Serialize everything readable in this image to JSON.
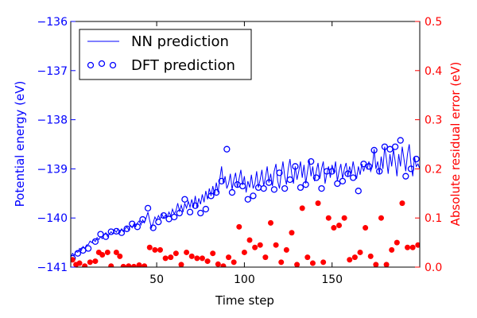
{
  "chart_data": {
    "type": "line",
    "x": [
      1,
      2,
      3,
      4,
      5,
      6,
      7,
      8,
      9,
      10,
      11,
      12,
      13,
      14,
      15,
      16,
      17,
      18,
      19,
      20,
      21,
      22,
      23,
      24,
      25,
      26,
      27,
      28,
      29,
      30,
      31,
      32,
      33,
      34,
      35,
      36,
      37,
      38,
      39,
      40,
      41,
      42,
      43,
      44,
      45,
      46,
      47,
      48,
      49,
      50,
      51,
      52,
      53,
      54,
      55,
      56,
      57,
      58,
      59,
      60,
      61,
      62,
      63,
      64,
      65,
      66,
      67,
      68,
      69,
      70,
      71,
      72,
      73,
      74,
      75,
      76,
      77,
      78,
      79,
      80,
      81,
      82,
      83,
      84,
      85,
      86,
      87,
      88,
      89,
      90,
      91,
      92,
      93,
      94,
      95,
      96,
      97,
      98,
      99,
      100,
      101,
      102,
      103,
      104,
      105,
      106,
      107,
      108,
      109,
      110,
      111,
      112,
      113,
      114,
      115,
      116,
      117,
      118,
      119,
      120,
      121,
      122,
      123,
      124,
      125,
      126,
      127,
      128,
      129,
      130,
      131,
      132,
      133,
      134,
      135,
      136,
      137,
      138,
      139,
      140,
      141,
      142,
      143,
      144,
      145,
      146,
      147,
      148,
      149,
      150,
      151,
      152,
      153,
      154,
      155,
      156,
      157,
      158,
      159,
      160,
      161,
      162,
      163,
      164,
      165,
      166,
      167,
      168,
      169,
      170,
      171,
      172,
      173,
      174,
      175,
      176,
      177,
      178,
      179,
      180,
      181,
      182,
      183,
      184,
      185,
      186,
      187,
      188,
      189,
      190,
      191,
      192,
      193,
      194,
      195,
      196,
      197,
      198,
      199,
      200
    ],
    "series": [
      {
        "name": "NN prediction",
        "axis": "left",
        "style": "line",
        "color": "#0000ff",
        "values": [
          -140.8,
          -140.72,
          -140.76,
          -140.68,
          -140.7,
          -140.62,
          -140.66,
          -140.58,
          -140.62,
          -140.55,
          -140.54,
          -140.47,
          -140.5,
          -140.44,
          -140.48,
          -140.4,
          -140.44,
          -140.38,
          -140.42,
          -140.34,
          -140.3,
          -140.38,
          -140.33,
          -140.28,
          -140.32,
          -140.25,
          -140.29,
          -140.22,
          -140.3,
          -140.22,
          -140.28,
          -140.22,
          -140.18,
          -140.24,
          -140.15,
          -140.2,
          -140.12,
          -140.18,
          -140.1,
          -140.06,
          -140.14,
          -140.04,
          -140.1,
          -140.0,
          -139.88,
          -140.05,
          -140.2,
          -140.1,
          -139.98,
          -140.05,
          -139.95,
          -140.02,
          -139.92,
          -140.0,
          -139.94,
          -139.98,
          -139.88,
          -139.96,
          -139.82,
          -139.92,
          -139.85,
          -139.7,
          -139.86,
          -139.74,
          -139.88,
          -139.7,
          -139.8,
          -139.66,
          -139.78,
          -139.62,
          -139.78,
          -139.55,
          -139.8,
          -139.6,
          -139.72,
          -139.52,
          -139.68,
          -139.45,
          -139.62,
          -139.4,
          -139.55,
          -139.35,
          -139.52,
          -139.28,
          -139.48,
          -139.2,
          -138.95,
          -139.3,
          -139.15,
          -139.4,
          -139.3,
          -139.1,
          -139.42,
          -139.22,
          -139.08,
          -139.38,
          -139.2,
          -139.02,
          -139.33,
          -139.15,
          -139.48,
          -139.25,
          -139.38,
          -139.12,
          -139.4,
          -139.3,
          -139.05,
          -139.38,
          -139.22,
          -139.02,
          -139.35,
          -139.18,
          -138.95,
          -139.28,
          -139.1,
          -139.35,
          -139.05,
          -138.9,
          -139.25,
          -139.4,
          -139.1,
          -138.85,
          -139.15,
          -139.32,
          -139.0,
          -138.8,
          -139.1,
          -139.3,
          -138.95,
          -139.22,
          -139.05,
          -138.85,
          -139.18,
          -138.92,
          -139.3,
          -139.05,
          -138.82,
          -139.15,
          -138.95,
          -139.25,
          -139.05,
          -138.88,
          -139.2,
          -139.0,
          -138.85,
          -139.3,
          -139.1,
          -138.95,
          -139.18,
          -138.92,
          -139.08,
          -138.85,
          -139.25,
          -139.05,
          -138.9,
          -139.2,
          -139.0,
          -138.88,
          -139.15,
          -138.95,
          -139.1,
          -138.85,
          -139.05,
          -139.2,
          -138.95,
          -139.12,
          -138.9,
          -139.05,
          -138.92,
          -139.0,
          -138.85,
          -139.05,
          -138.95,
          -138.6,
          -139.0,
          -138.85,
          -139.1,
          -138.75,
          -139.0,
          -138.55,
          -138.8,
          -139.1,
          -138.7,
          -138.95,
          -138.6,
          -138.85,
          -139.15,
          -138.7,
          -138.95,
          -138.55,
          -138.8,
          -139.05,
          -138.7,
          -138.5,
          -138.9,
          -139.15,
          -138.75,
          -138.95,
          -138.9,
          -139.0
        ]
      },
      {
        "name": "DFT prediction",
        "axis": "left",
        "style": "open-circles",
        "color": "#0000ff",
        "x": [
          2,
          5,
          8,
          11,
          15,
          18,
          21,
          24,
          27,
          30,
          33,
          36,
          39,
          42,
          45,
          48,
          51,
          54,
          57,
          60,
          63,
          66,
          69,
          72,
          75,
          78,
          81,
          84,
          87,
          90,
          93,
          96,
          99,
          102,
          105,
          108,
          111,
          114,
          117,
          120,
          123,
          126,
          129,
          132,
          135,
          138,
          141,
          144,
          147,
          150,
          153,
          156,
          159,
          162,
          165,
          168,
          171,
          174,
          177,
          180,
          183,
          186,
          189,
          192,
          195,
          198
        ],
        "values": [
          -140.82,
          -140.72,
          -140.66,
          -140.62,
          -140.48,
          -140.33,
          -140.38,
          -140.28,
          -140.27,
          -140.3,
          -140.22,
          -140.12,
          -140.18,
          -140.03,
          -139.8,
          -140.2,
          -140.08,
          -139.95,
          -140.02,
          -139.98,
          -139.9,
          -139.62,
          -139.88,
          -139.75,
          -139.9,
          -139.82,
          -139.55,
          -139.48,
          -139.25,
          -138.6,
          -139.48,
          -139.32,
          -139.35,
          -139.62,
          -139.55,
          -139.38,
          -139.4,
          -139.28,
          -139.42,
          -139.08,
          -139.4,
          -139.22,
          -138.95,
          -139.38,
          -139.32,
          -138.85,
          -139.18,
          -139.4,
          -139.05,
          -139.05,
          -139.3,
          -139.25,
          -139.1,
          -139.18,
          -139.45,
          -138.9,
          -138.95,
          -138.62,
          -139.05,
          -138.55,
          -138.6,
          -138.55,
          -138.42,
          -139.15,
          -139.0,
          -138.8
        ]
      },
      {
        "name": "",
        "axis": "right",
        "style": "filled-dots",
        "color": "#ff0000",
        "x": [
          2,
          4,
          6,
          9,
          12,
          15,
          17,
          19,
          22,
          24,
          27,
          29,
          31,
          34,
          37,
          40,
          43,
          46,
          49,
          52,
          55,
          58,
          61,
          64,
          67,
          70,
          73,
          76,
          79,
          82,
          85,
          88,
          91,
          94,
          97,
          100,
          103,
          106,
          109,
          112,
          115,
          118,
          121,
          124,
          127,
          130,
          133,
          136,
          139,
          142,
          145,
          148,
          151,
          154,
          157,
          160,
          163,
          166,
          169,
          172,
          175,
          178,
          181,
          184,
          187,
          190,
          193,
          196,
          199
        ],
        "values": [
          0.015,
          0.005,
          0.008,
          0.002,
          0.01,
          0.012,
          0.03,
          0.025,
          0.03,
          0.002,
          0.03,
          0.022,
          0.001,
          0.002,
          0.001,
          0.004,
          0.002,
          0.04,
          0.035,
          0.035,
          0.018,
          0.02,
          0.028,
          0.005,
          0.03,
          0.022,
          0.018,
          0.018,
          0.012,
          0.028,
          0.006,
          0.002,
          0.02,
          0.01,
          0.082,
          0.03,
          0.055,
          0.04,
          0.045,
          0.02,
          0.09,
          0.045,
          0.01,
          0.035,
          0.07,
          0.005,
          0.12,
          0.02,
          0.008,
          0.13,
          0.01,
          0.1,
          0.08,
          0.085,
          0.1,
          0.015,
          0.02,
          0.03,
          0.08,
          0.022,
          0.005,
          0.1,
          0.005,
          0.035,
          0.05,
          0.13,
          0.04,
          0.04,
          0.045
        ]
      }
    ],
    "title": "",
    "xlabel": "Time step",
    "ylabel_left": "Potential energy (eV)",
    "ylabel_right": "Absolute residual error (eV)",
    "xlim": [
      1,
      200
    ],
    "ylim_left": [
      -141,
      -136
    ],
    "ylim_right": [
      0.0,
      0.5
    ],
    "xticks": [
      50,
      100,
      150
    ],
    "yticks_left": [
      -141,
      -140,
      -139,
      -138,
      -137,
      -136
    ],
    "yticks_left_labels": [
      "−141",
      "−140",
      "−139",
      "−138",
      "−137",
      "−136"
    ],
    "yticks_right": [
      0.0,
      0.1,
      0.2,
      0.3,
      0.4,
      0.5
    ],
    "yticks_right_labels": [
      "0.0",
      "0.1",
      "0.2",
      "0.3",
      "0.4",
      "0.5"
    ],
    "legend_position": "top-left",
    "grid": false,
    "colors": {
      "left_axis": "#0000ff",
      "right_axis": "#ff0000"
    }
  }
}
